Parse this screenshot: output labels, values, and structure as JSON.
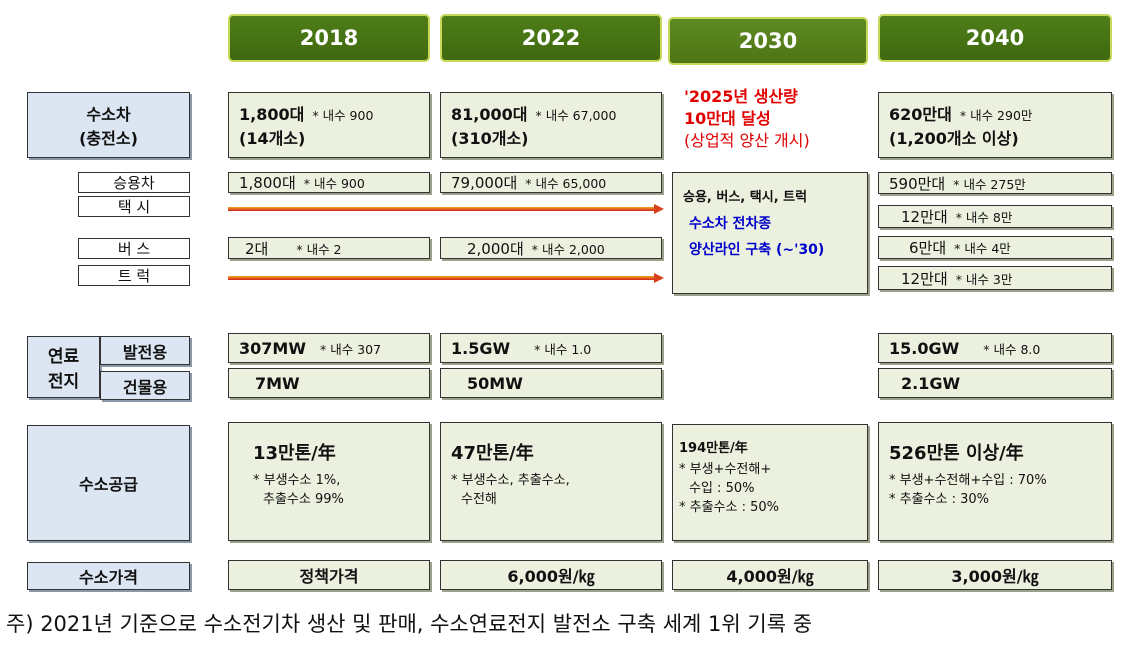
{
  "columns": [
    "2018",
    "2022",
    "2030",
    "2040"
  ],
  "vehicle": {
    "label": "수소차",
    "sublabel": "(충전소)",
    "total": [
      {
        "main": "1,800대",
        "note": "* 내수 900",
        "sub": "(14개소)"
      },
      {
        "main": "81,000대",
        "note": "* 내수 67,000",
        "sub": "(310개소)"
      },
      {
        "lines": [
          "'2025년 생산량",
          "10만대 달성",
          "(상업적 양산 개시)"
        ]
      },
      {
        "main": "620만대",
        "note": "* 내수 290만",
        "sub": "(1,200개소 이상)"
      }
    ],
    "types": [
      "승용차",
      "택 시",
      "버 스",
      "트 럭"
    ],
    "passenger": [
      {
        "main": "1,800대",
        "note": "* 내수 900"
      },
      {
        "main": "79,000대",
        "note": "* 내수 65,000"
      },
      {
        "main": "590만대",
        "note": "* 내수 275만"
      }
    ],
    "taxi": {
      "main": "12만대",
      "note": "* 내수 8만"
    },
    "bus": [
      {
        "main": "2대",
        "note": "* 내수 2"
      },
      {
        "main": "2,000대",
        "note": "* 내수 2,000"
      },
      {
        "main": "6만대",
        "note": "* 내수 4만"
      }
    ],
    "truck": {
      "main": "12만대",
      "note": "* 내수 3만"
    },
    "plan_2030": [
      "승용, 버스, 택시, 트럭",
      "수소차 전차종",
      "양산라인 구축 (~'30)"
    ]
  },
  "fuel_cell": {
    "label": [
      "연료",
      "전지"
    ],
    "power_label": "발전용",
    "building_label": "건물용",
    "power": [
      {
        "main": "307MW",
        "note": "* 내수 307"
      },
      {
        "main": "1.5GW",
        "note": "* 내수 1.0"
      },
      {
        "main": "15.0GW",
        "note": "* 내수 8.0"
      }
    ],
    "building": [
      "7MW",
      "50MW",
      "2.1GW"
    ]
  },
  "supply": {
    "label": "수소공급",
    "cells": [
      {
        "title": "13만톤/年",
        "lines": [
          "* 부생수소 1%,",
          "추출수소 99%"
        ]
      },
      {
        "title": "47만톤/年",
        "lines": [
          "* 부생수소, 추출수소,",
          "수전해"
        ]
      },
      {
        "title": "194만톤/年",
        "lines": [
          "* 부생+수전해+",
          "수입 : 50%",
          "* 추출수소 : 50%"
        ]
      },
      {
        "title": "526만톤 이상/年",
        "lines": [
          "* 부생+수전해+수입 : 70%",
          "* 추출수소 :  30%"
        ]
      }
    ]
  },
  "price": {
    "label": "수소가격",
    "values": [
      "정책가격",
      "6,000원/㎏",
      "4,000원/㎏",
      "3,000원/㎏"
    ]
  },
  "footnote": "주) 2021년 기준으로 수소전기차 생산 및 판매, 수소연료전지 발전소 구축 세계 1위 기록 중"
}
